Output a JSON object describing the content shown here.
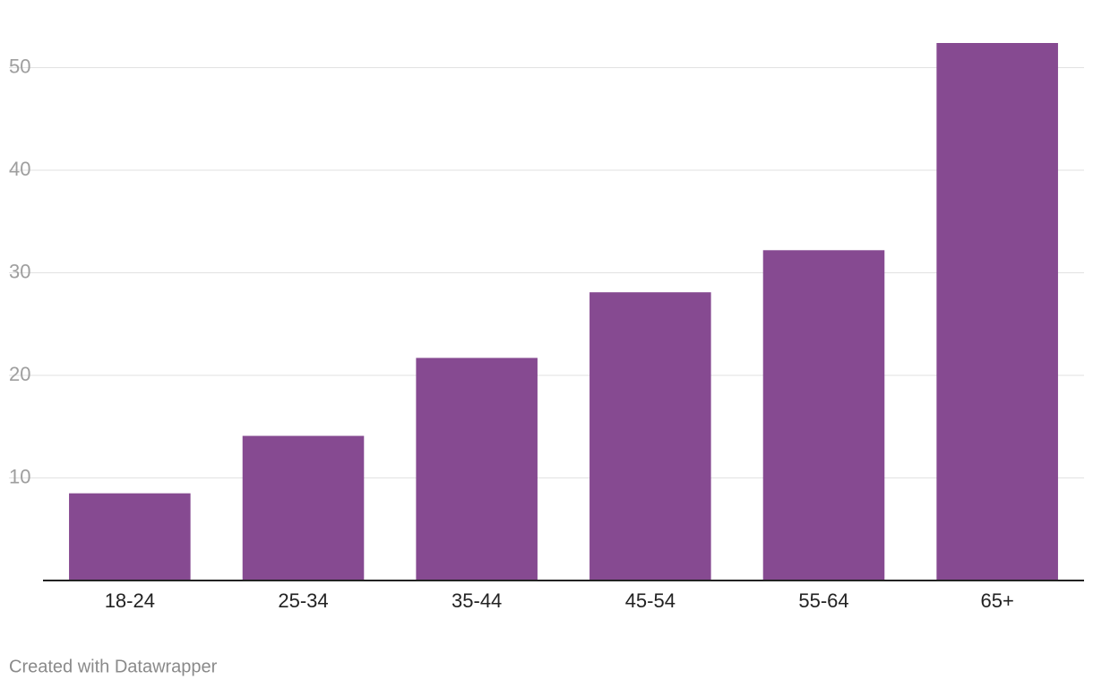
{
  "chart_data": {
    "type": "bar",
    "categories": [
      "18-24",
      "25-34",
      "35-44",
      "45-54",
      "55-64",
      "65+"
    ],
    "values": [
      8.5,
      14.1,
      21.7,
      28.1,
      32.2,
      52.4
    ],
    "color": "#864a91",
    "ylim": [
      0,
      52.4
    ],
    "yticks": [
      10,
      20,
      30,
      40,
      50
    ],
    "grid": true
  },
  "credit": "Created with Datawrapper"
}
